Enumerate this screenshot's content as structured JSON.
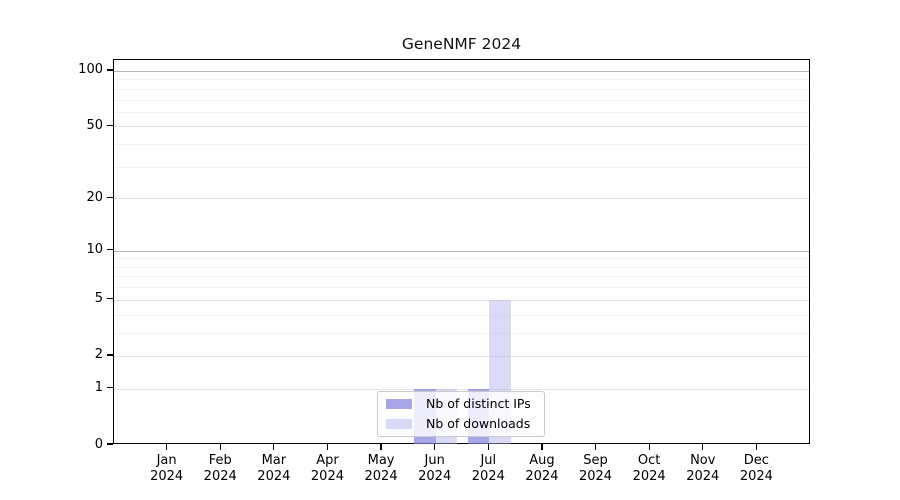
{
  "chart_data": {
    "type": "bar",
    "title": "GeneNMF 2024",
    "categories": [
      "Jan",
      "Feb",
      "Mar",
      "Apr",
      "May",
      "Jun",
      "Jul",
      "Aug",
      "Sep",
      "Oct",
      "Nov",
      "Dec"
    ],
    "category_year": "2024",
    "series": [
      {
        "name": "Nb of distinct IPs",
        "values": [
          0,
          0,
          0,
          0,
          0,
          1,
          1,
          0,
          0,
          0,
          0,
          0
        ],
        "color": "#a8a8eb",
        "fill": "rgba(128,128,222,0.7)"
      },
      {
        "name": "Nb of downloads",
        "values": [
          0,
          0,
          0,
          0,
          0,
          1,
          5,
          0,
          0,
          0,
          0,
          0
        ],
        "color": "#dcdcf7",
        "fill": "rgba(173,173,235,0.45)"
      }
    ],
    "xlabel": "",
    "ylabel": "",
    "y_scale": "log1p",
    "y_ticks": [
      0,
      1,
      2,
      5,
      10,
      20,
      50,
      100
    ],
    "ylim": [
      0,
      114
    ],
    "grid": "on",
    "gridline_values_strong": [
      10,
      100
    ],
    "gridline_values_major": [
      1,
      2,
      5,
      20,
      50
    ],
    "gridline_values_minor": [
      3,
      4,
      6,
      7,
      8,
      9,
      30,
      40,
      60,
      70,
      80,
      90
    ],
    "legend_position": "lower center"
  }
}
